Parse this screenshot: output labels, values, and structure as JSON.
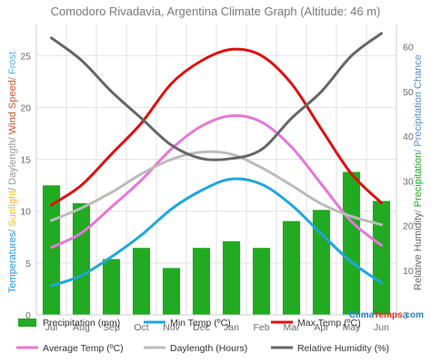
{
  "chart_data": {
    "type": "bar",
    "title": "Comodoro Rivadavia, Argentina Climate Graph (Altitude: 46 m)",
    "categories": [
      "Jul",
      "Aug",
      "Sep",
      "Oct",
      "Nov",
      "Dec",
      "Jan",
      "Feb",
      "Mar",
      "Apr",
      "May",
      "Jun"
    ],
    "ylabel_left_parts": [
      {
        "text": "Temperatures",
        "color": "#2299e0"
      },
      {
        "text": "/ ",
        "color": "#888888"
      },
      {
        "text": "Sunlight",
        "color": "#f0c020"
      },
      {
        "text": "/ ",
        "color": "#888888"
      },
      {
        "text": "Daylength",
        "color": "#999999"
      },
      {
        "text": "/ ",
        "color": "#888888"
      },
      {
        "text": "Wind Speed",
        "color": "#c45a3a"
      },
      {
        "text": "/ ",
        "color": "#888888"
      },
      {
        "text": "Frost",
        "color": "#5ab0e8"
      }
    ],
    "ylabel_right_parts": [
      {
        "text": "Relative Humidity",
        "color": "#666666"
      },
      {
        "text": "/ ",
        "color": "#888888"
      },
      {
        "text": "Precipitation",
        "color": "#22aa22"
      },
      {
        "text": "/ ",
        "color": "#888888"
      },
      {
        "text": "Precipitation Chance",
        "color": "#5a8fc0"
      }
    ],
    "yleft_lim": [
      0,
      28
    ],
    "yleft_ticks": [
      0,
      5,
      10,
      15,
      20,
      25
    ],
    "yright_lim": [
      0,
      65
    ],
    "yright_ticks": [
      0,
      10,
      20,
      30,
      40,
      50,
      60
    ],
    "grid": true,
    "legend_position": "bottom",
    "bar_series": {
      "name": "Precipitation (mm)",
      "axis": "right",
      "color": "#22aa22",
      "values": [
        29,
        25,
        12.5,
        15,
        10.5,
        15,
        16.5,
        15,
        21,
        23.5,
        32,
        25.5
      ]
    },
    "line_series": [
      {
        "name": "Min Temp (ºC)",
        "axis": "left",
        "color": "#1fa6de",
        "values": [
          2.8,
          3.8,
          5.6,
          7.7,
          10.2,
          12.0,
          13.1,
          12.6,
          10.6,
          7.8,
          5.1,
          3.1
        ]
      },
      {
        "name": "Max Temp (ºC)",
        "axis": "left",
        "color": "#dd1111",
        "values": [
          10.6,
          12.5,
          15.5,
          18.5,
          22.3,
          24.5,
          25.6,
          25.0,
          22.3,
          17.9,
          13.6,
          10.8
        ]
      },
      {
        "name": "Average Temp (ºC)",
        "axis": "left",
        "color": "#e677d6",
        "values": [
          6.5,
          7.9,
          10.4,
          13.0,
          16.0,
          18.2,
          19.2,
          18.6,
          16.2,
          12.6,
          9.0,
          6.7
        ]
      },
      {
        "name": "Daylength (Hours)",
        "axis": "left",
        "color": "#bbbbbb",
        "values": [
          9.1,
          10.3,
          11.8,
          13.6,
          15.0,
          15.7,
          15.5,
          14.2,
          12.5,
          10.7,
          9.5,
          8.7
        ]
      },
      {
        "name": "Relative Humidity (%)",
        "axis": "right",
        "color": "#666666",
        "values": [
          62,
          57,
          50,
          44,
          38,
          35,
          35,
          37,
          44,
          50,
          58,
          63
        ]
      }
    ]
  },
  "legend": [
    {
      "label": "Precipitation (mm)",
      "kind": "bar",
      "color": "#22aa22"
    },
    {
      "label": "Min Temp (ºC)",
      "kind": "line",
      "color": "#1fa6de"
    },
    {
      "label": "Max Temp (ºC)",
      "kind": "line",
      "color": "#dd1111"
    },
    {
      "label": "Average Temp (ºC)",
      "kind": "line",
      "color": "#e677d6"
    },
    {
      "label": "Daylength (Hours)",
      "kind": "line",
      "color": "#bbbbbb"
    },
    {
      "label": "Relative Humidity (%)",
      "kind": "line",
      "color": "#666666"
    }
  ],
  "brand": {
    "clima_text": "Clima",
    "temps_text": "Temps",
    "domain_text": ".com",
    "clima_color": "#2a82c8",
    "temps_color": "#e03020",
    "domain_color": "#2a82c8"
  }
}
